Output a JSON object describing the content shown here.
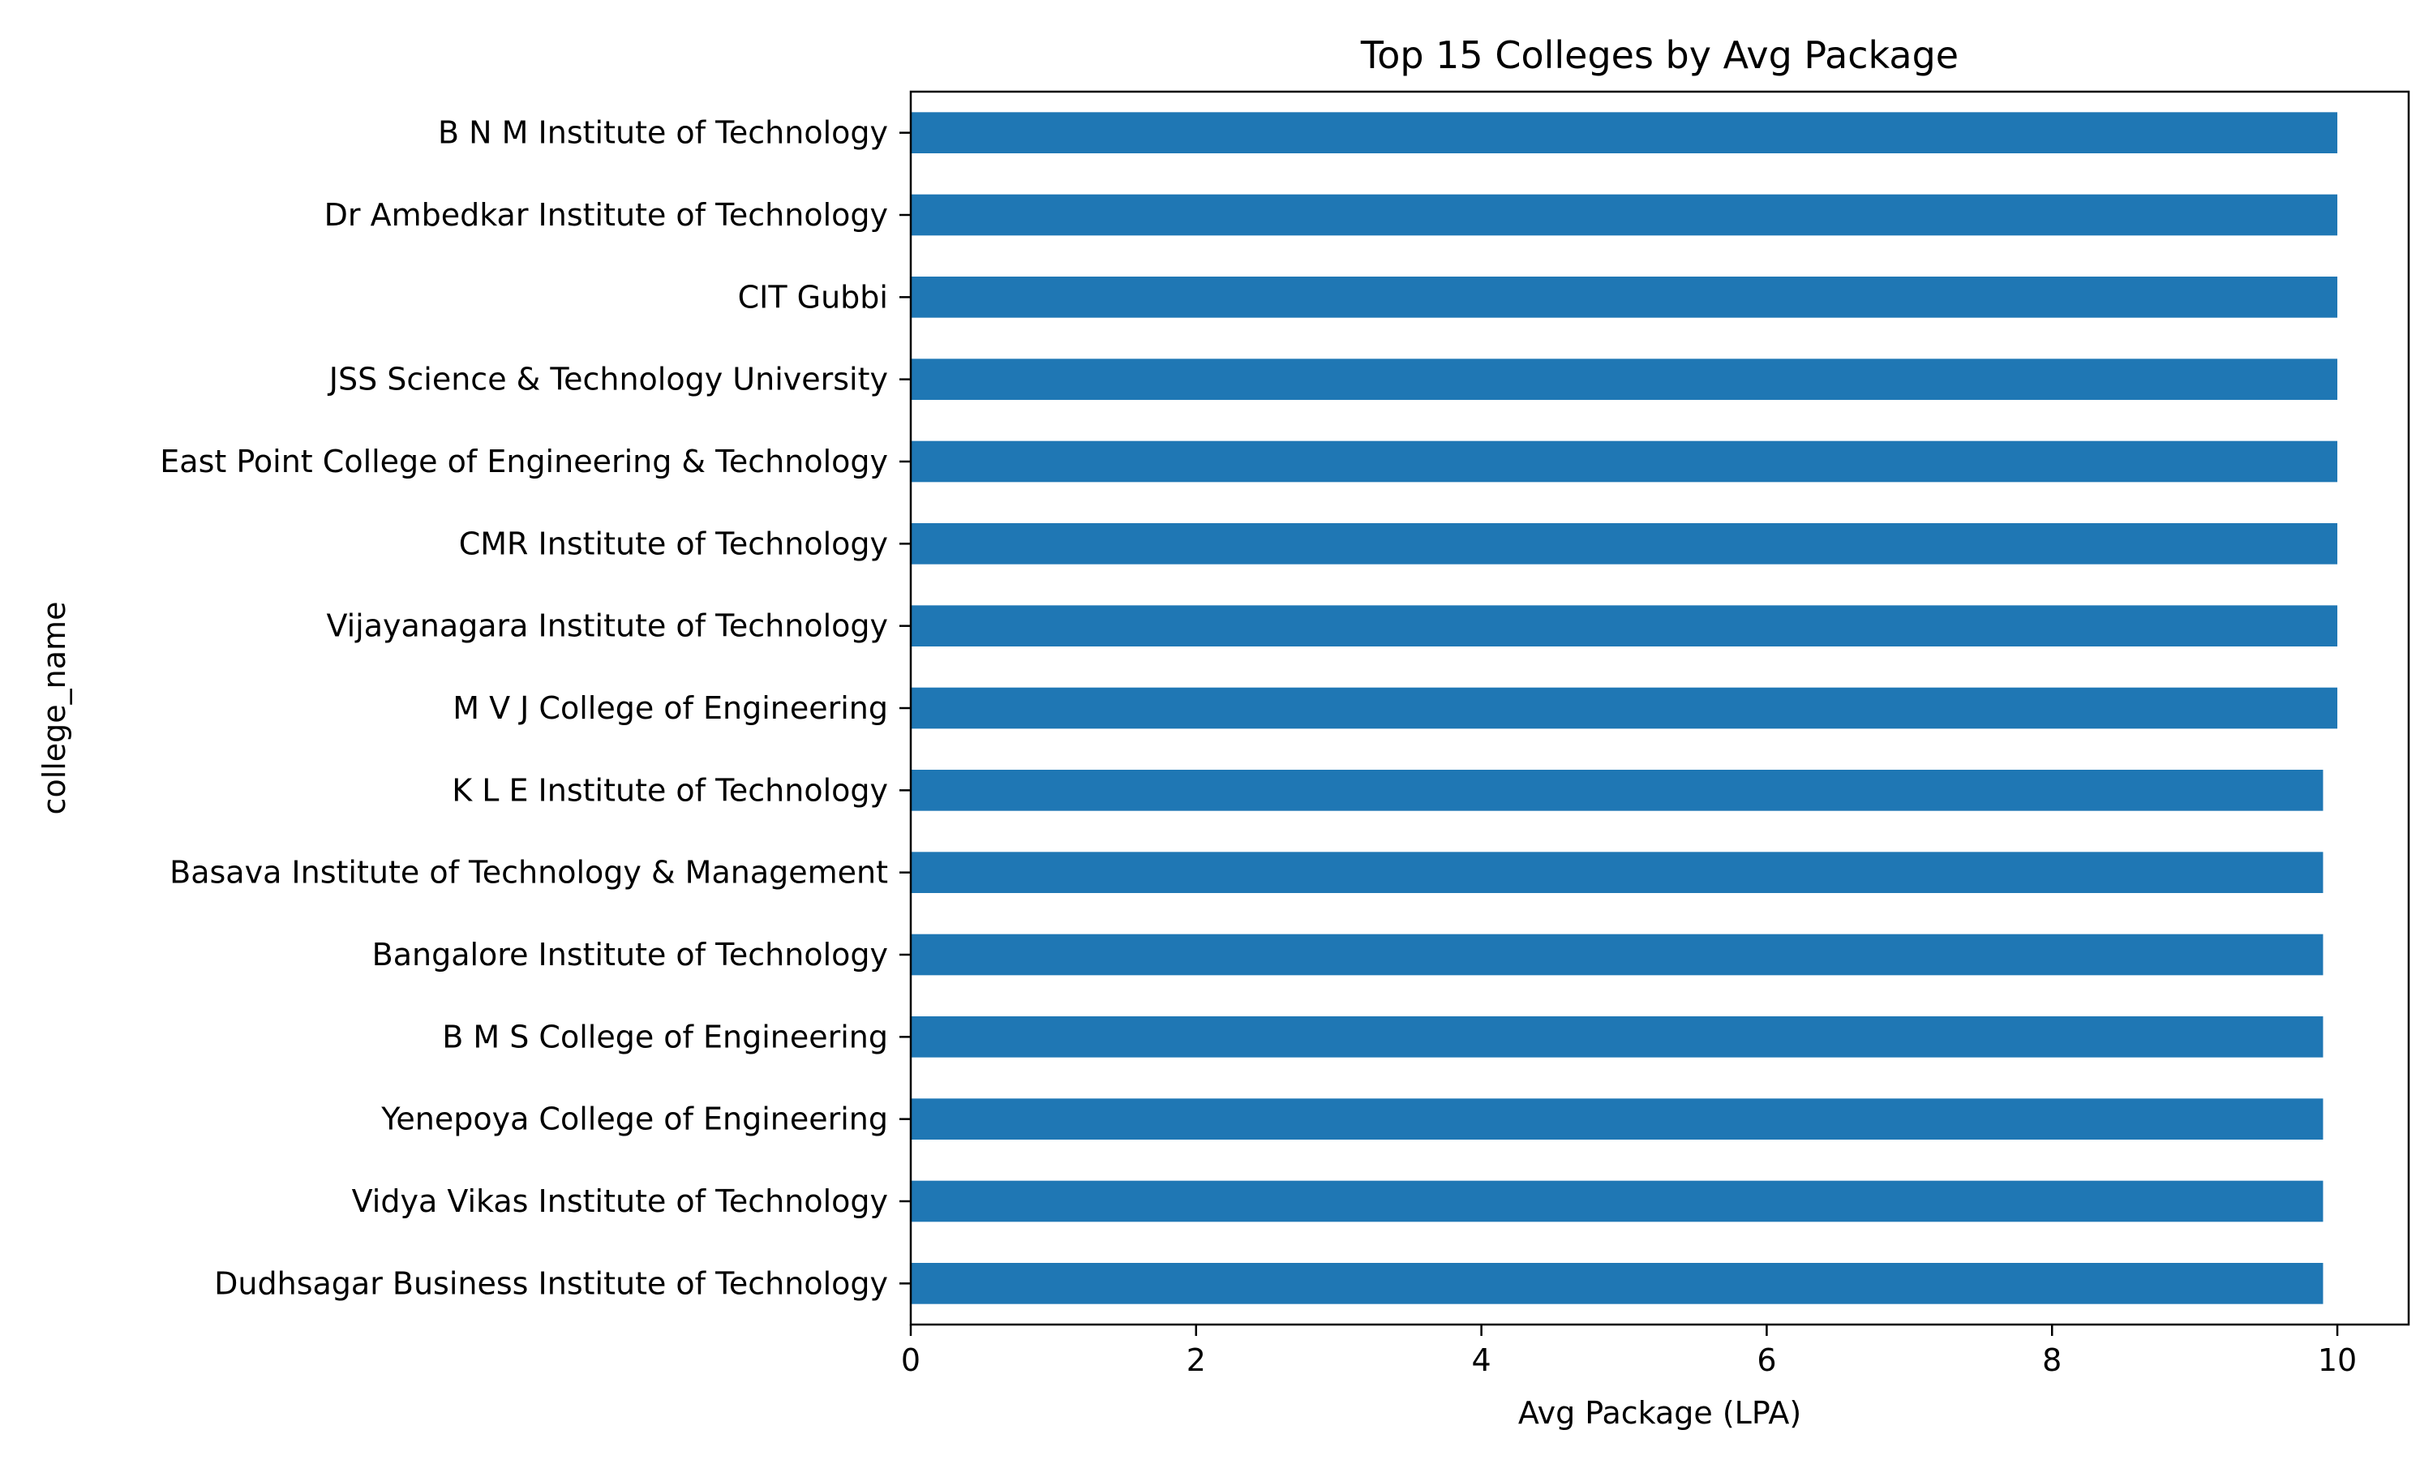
{
  "chart_data": {
    "type": "bar",
    "orientation": "horizontal",
    "title": "Top 15 Colleges by Avg Package",
    "xlabel": "Avg Package (LPA)",
    "ylabel": "college_name",
    "categories": [
      "B N M Institute of Technology",
      "Dr Ambedkar Institute of Technology",
      "CIT Gubbi",
      "JSS Science & Technology University",
      "East Point College of Engineering & Technology",
      "CMR Institute of Technology",
      "Vijayanagara Institute of Technology",
      "M V J College of Engineering",
      "K L E Institute of Technology",
      "Basava Institute of Technology & Management",
      "Bangalore Institute of Technology",
      "B M S College of Engineering",
      "Yenepoya College of Engineering",
      "Vidya Vikas Institute of Technology",
      "Dudhsagar Business Institute of Technology"
    ],
    "values": [
      10.0,
      10.0,
      10.0,
      10.0,
      10.0,
      10.0,
      10.0,
      10.0,
      9.9,
      9.9,
      9.9,
      9.9,
      9.9,
      9.9,
      9.9
    ],
    "xlim": [
      0,
      10.5
    ],
    "xticks": [
      0,
      2,
      4,
      6,
      8,
      10
    ],
    "grid": false,
    "legend": "none",
    "bar_color": "#1f77b4"
  }
}
